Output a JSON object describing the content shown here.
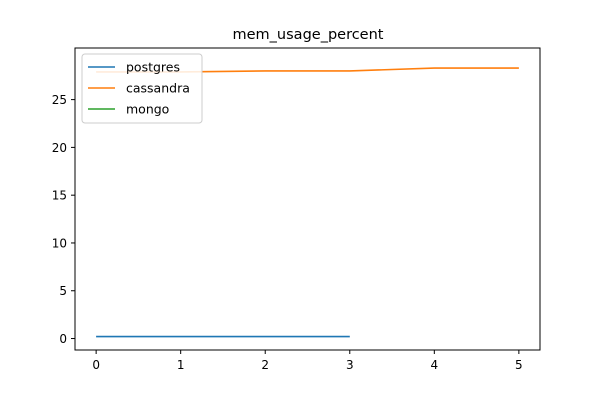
{
  "chart_data": {
    "type": "line",
    "title": "mem_usage_percent",
    "xlabel": "",
    "ylabel": "",
    "xlim": [
      -0.25,
      5.25
    ],
    "ylim": [
      -1.2,
      30.4
    ],
    "xticks": [
      0,
      1,
      2,
      3,
      4,
      5
    ],
    "yticks": [
      0,
      5,
      10,
      15,
      20,
      25
    ],
    "grid": false,
    "legend_position": "top-left",
    "series": [
      {
        "name": "postgres",
        "color": "#1f77b4",
        "x": [
          0,
          1,
          2,
          3
        ],
        "values": [
          0.2,
          0.2,
          0.2,
          0.2
        ]
      },
      {
        "name": "cassandra",
        "color": "#ff7f0e",
        "x": [
          0,
          1,
          2,
          3,
          4,
          5
        ],
        "values": [
          27.9,
          27.9,
          28.0,
          28.0,
          28.3,
          28.3
        ]
      },
      {
        "name": "mongo",
        "color": "#2ca02c",
        "x": [],
        "values": []
      }
    ]
  }
}
